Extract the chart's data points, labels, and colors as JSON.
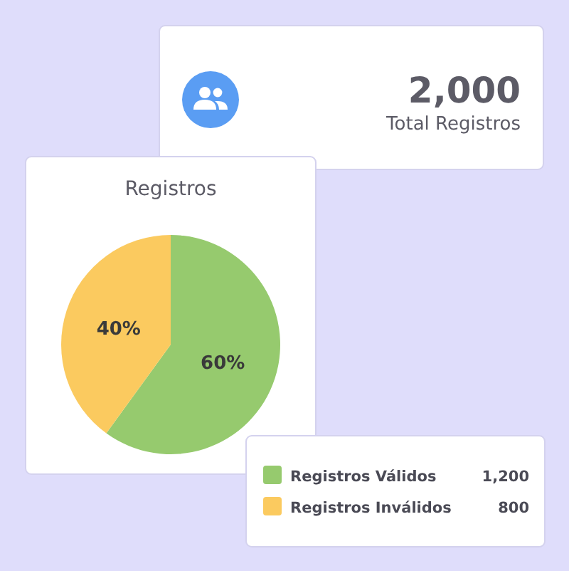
{
  "chart_data": [
    {
      "type": "other",
      "title": "Total Registros",
      "annotations": [
        "2,000"
      ]
    },
    {
      "type": "pie",
      "title": "Registros",
      "categories": [
        "Registros Válidos",
        "Registros Inválidos"
      ],
      "values": [
        60,
        40
      ],
      "colors": [
        "#96ca6e",
        "#fbca5f"
      ],
      "value_labels": [
        "60%",
        "40%"
      ],
      "legend": "bottom right",
      "annotations": [
        "1,200",
        "800"
      ]
    }
  ]
}
